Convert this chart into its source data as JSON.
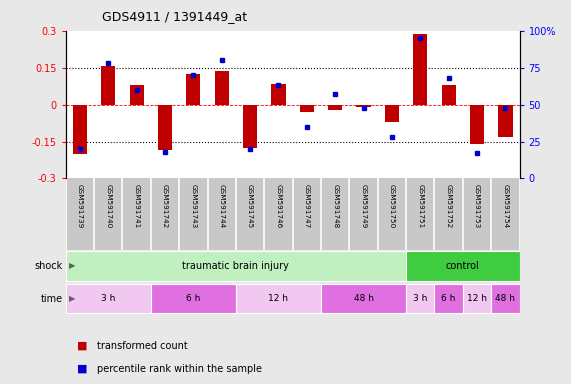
{
  "title": "GDS4911 / 1391449_at",
  "samples": [
    "GSM591739",
    "GSM591740",
    "GSM591741",
    "GSM591742",
    "GSM591743",
    "GSM591744",
    "GSM591745",
    "GSM591746",
    "GSM591747",
    "GSM591748",
    "GSM591749",
    "GSM591750",
    "GSM591751",
    "GSM591752",
    "GSM591753",
    "GSM591754"
  ],
  "bar_values": [
    -0.2,
    0.155,
    0.08,
    -0.185,
    0.125,
    0.135,
    -0.175,
    0.085,
    -0.03,
    -0.02,
    -0.01,
    -0.07,
    0.285,
    0.08,
    -0.16,
    -0.13
  ],
  "dot_values": [
    20,
    78,
    60,
    18,
    70,
    80,
    20,
    63,
    35,
    57,
    48,
    28,
    95,
    68,
    17,
    48
  ],
  "bar_color": "#c00000",
  "dot_color": "#0000cc",
  "ylim_left": [
    -0.3,
    0.3
  ],
  "ylim_right": [
    0,
    100
  ],
  "yticks_left": [
    -0.3,
    -0.15,
    0,
    0.15,
    0.3
  ],
  "yticks_right": [
    0,
    25,
    50,
    75,
    100
  ],
  "ytick_labels_left": [
    "-0.3",
    "-0.15",
    "0",
    "0.15",
    "0.3"
  ],
  "ytick_labels_right": [
    "0",
    "25",
    "50",
    "75",
    "100%"
  ],
  "hlines": [
    0.15,
    0.0,
    -0.15
  ],
  "hline_styles": [
    "dotted",
    "dashed_red",
    "dotted"
  ],
  "shock_groups": [
    {
      "label": "traumatic brain injury",
      "start": 0,
      "end": 12,
      "color": "#c0f0c0"
    },
    {
      "label": "control",
      "start": 12,
      "end": 16,
      "color": "#40cc40"
    }
  ],
  "time_groups": [
    {
      "label": "3 h",
      "start": 0,
      "end": 3,
      "color": "#f0c8f0"
    },
    {
      "label": "6 h",
      "start": 3,
      "end": 6,
      "color": "#e070e0"
    },
    {
      "label": "12 h",
      "start": 6,
      "end": 9,
      "color": "#f0c8f0"
    },
    {
      "label": "48 h",
      "start": 9,
      "end": 12,
      "color": "#e070e0"
    },
    {
      "label": "3 h",
      "start": 12,
      "end": 13,
      "color": "#f0c8f0"
    },
    {
      "label": "6 h",
      "start": 13,
      "end": 14,
      "color": "#e070e0"
    },
    {
      "label": "12 h",
      "start": 14,
      "end": 15,
      "color": "#f0c8f0"
    },
    {
      "label": "48 h",
      "start": 15,
      "end": 16,
      "color": "#e070e0"
    }
  ],
  "legend_bar_label": "transformed count",
  "legend_dot_label": "percentile rank within the sample",
  "bg_color": "#e8e8e8",
  "plot_bg": "#ffffff",
  "label_bg": "#c8c8c8"
}
